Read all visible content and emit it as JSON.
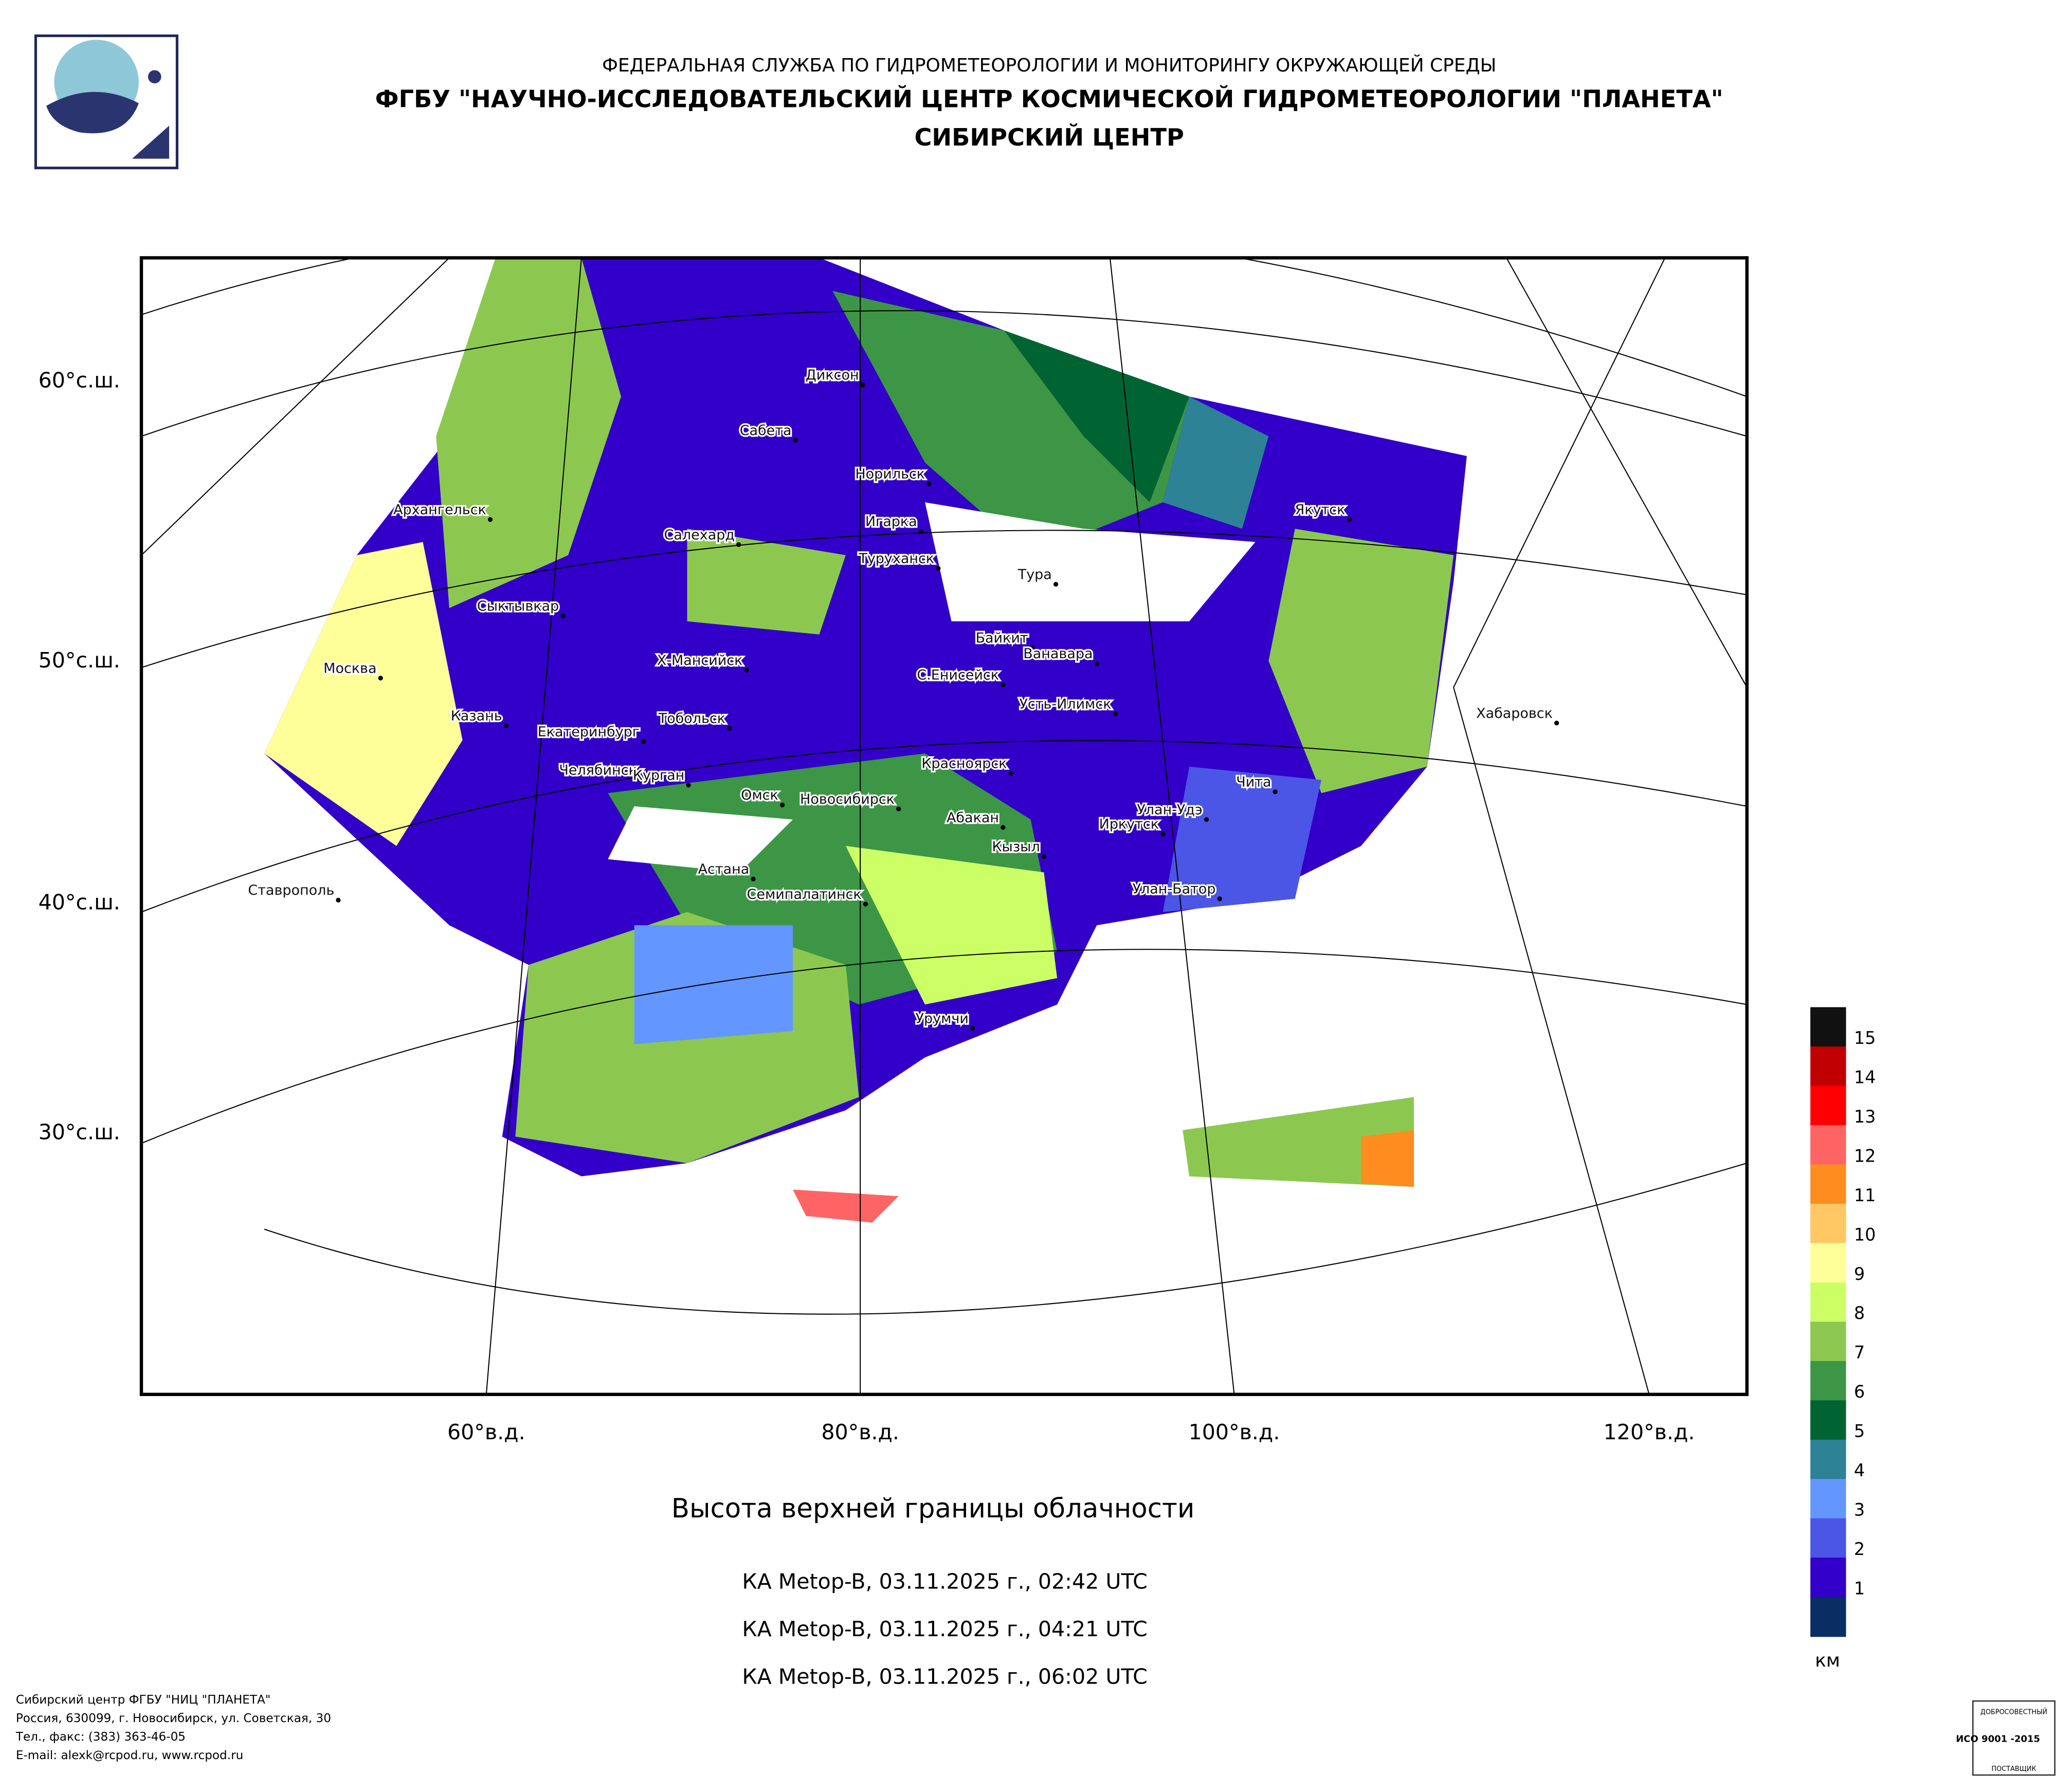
{
  "header": {
    "line1": "ФЕДЕРАЛЬНАЯ СЛУЖБА ПО ГИДРОМЕТЕОРОЛОГИИ И МОНИТОРИНГУ ОКРУЖАЮЩЕЙ СРЕДЫ",
    "line2": "ФГБУ \"НАУЧНО-ИССЛЕДОВАТЕЛЬСКИЙ ЦЕНТР КОСМИЧЕСКОЙ ГИДРОМЕТЕОРОЛОГИИ \"ПЛАНЕТА\"",
    "line3": "СИБИРСКИЙ ЦЕНТР"
  },
  "map": {
    "lat_labels": [
      "60°с.ш.",
      "50°с.ш.",
      "40°с.ш.",
      "30°с.ш."
    ],
    "lon_labels": [
      "60°в.д.",
      "80°в.д.",
      "100°в.д.",
      "120°в.д."
    ],
    "cities": [
      "Диксон",
      "Сабета",
      "Норильск",
      "Архангельск",
      "Игарка",
      "Салехард",
      "Туруханск",
      "Тура",
      "Якутск",
      "Сыктывкар",
      "Байкит",
      "Ванавара",
      "Москва",
      "Х-Мансийск",
      "С.Енисейск",
      "Усть-Илимск",
      "Казань",
      "Тобольск",
      "Екатеринбург",
      "Хабаровск",
      "Челябинск",
      "Курган",
      "Красноярск",
      "Чита",
      "Омск",
      "Новосибирск",
      "Улан-Удэ",
      "Абакан",
      "Иркутск",
      "Кызыл",
      "Астана",
      "Ставрополь",
      "Семипалатинск",
      "Улан-Батор",
      "Урумчи"
    ]
  },
  "legend": {
    "unit": "км",
    "colors": [
      "#111111",
      "#c00000",
      "#ff0000",
      "#ff6464",
      "#ff8c1e",
      "#ffc864",
      "#ffff99",
      "#ccff66",
      "#8cc850",
      "#3c9646",
      "#006432",
      "#2d8296",
      "#6496ff",
      "#4b55e6",
      "#3200c8",
      "#0a2d64"
    ],
    "labels": [
      "15",
      "14",
      "13",
      "12",
      "11",
      "10",
      "9",
      "8",
      "7",
      "6",
      "5",
      "4",
      "3",
      "2",
      "1"
    ]
  },
  "caption": {
    "title": "Высота верхней границы облачности",
    "passes": [
      "КА Metop-B, 03.11.2025 г., 02:42 UTC",
      "КА Metop-B, 03.11.2025 г., 04:21 UTC",
      "КА Metop-B, 03.11.2025 г., 06:02 UTC"
    ]
  },
  "footer": {
    "lines": [
      "Сибирский центр ФГБУ \"НИЦ \"ПЛАНЕТА\"",
      "Россия, 630099, г. Новосибирск, ул. Советская, 30",
      "Тел., факс: (383) 363-46-05",
      "E-mail: alexk@rcpod.ru, www.rcpod.ru"
    ]
  },
  "certificate": {
    "top": "ДОБРОСОВЕСТНЫЙ",
    "standard": "ИСО 9001 -2015",
    "bottom": "ПОСТАВЩИК"
  }
}
